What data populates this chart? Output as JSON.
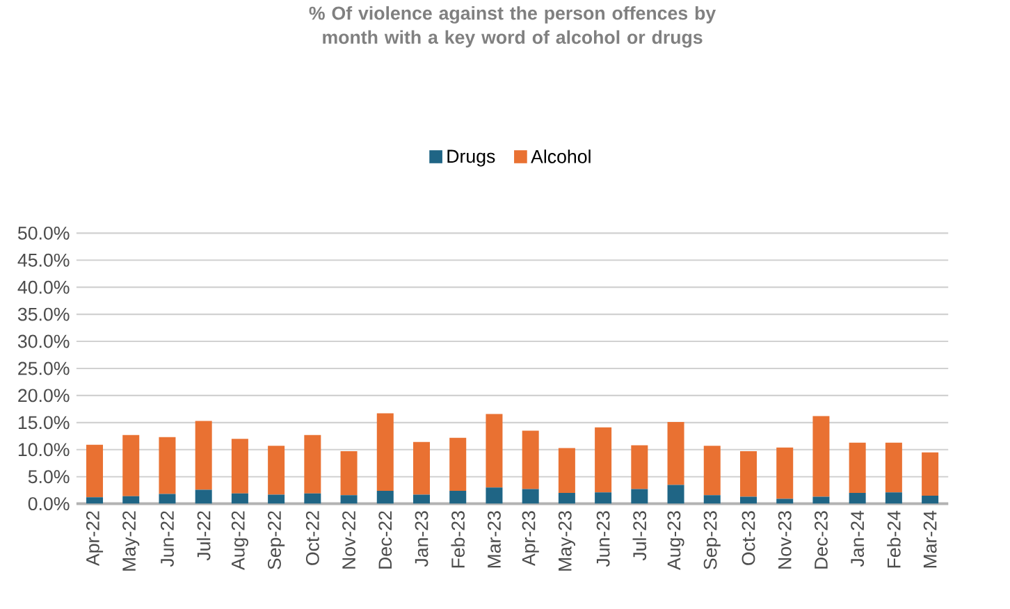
{
  "chart_data": {
    "type": "bar",
    "stacked": true,
    "title": "% Of violence against the person offences by month with a key word of  alcohol or drugs",
    "categories": [
      "Apr-22",
      "May-22",
      "Jun-22",
      "Jul-22",
      "Aug-22",
      "Sep-22",
      "Oct-22",
      "Nov-22",
      "Dec-22",
      "Jan-23",
      "Feb-23",
      "Mar-23",
      "Apr-23",
      "May-23",
      "Jun-23",
      "Jul-23",
      "Aug-23",
      "Sep-23",
      "Oct-23",
      "Nov-23",
      "Dec-23",
      "Jan-24",
      "Feb-24",
      "Mar-24"
    ],
    "series": [
      {
        "name": "Drugs",
        "color": "#1f6585",
        "values": [
          1.2,
          1.4,
          1.8,
          2.6,
          1.9,
          1.7,
          1.9,
          1.6,
          2.4,
          1.7,
          2.4,
          3.0,
          2.7,
          2.0,
          2.1,
          2.7,
          3.5,
          1.6,
          1.3,
          0.9,
          1.3,
          2.0,
          2.1,
          1.5
        ]
      },
      {
        "name": "Alcohol",
        "color": "#e97132",
        "values": [
          9.7,
          11.3,
          10.5,
          12.7,
          10.1,
          9.0,
          10.8,
          8.1,
          14.3,
          9.7,
          9.8,
          13.6,
          10.8,
          8.3,
          12.0,
          8.1,
          11.6,
          9.1,
          8.4,
          9.5,
          14.9,
          9.3,
          9.2,
          8.0
        ]
      }
    ],
    "ylim": [
      0,
      50
    ],
    "yticks": [
      {
        "value": 0,
        "label": "0.0%"
      },
      {
        "value": 5,
        "label": "5.0%"
      },
      {
        "value": 10,
        "label": "10.0%"
      },
      {
        "value": 15,
        "label": "15.0%"
      },
      {
        "value": 20,
        "label": "20.0%"
      },
      {
        "value": 25,
        "label": "25.0%"
      },
      {
        "value": 30,
        "label": "30.0%"
      },
      {
        "value": 35,
        "label": "35.0%"
      },
      {
        "value": 40,
        "label": "40.0%"
      },
      {
        "value": 45,
        "label": "45.0%"
      },
      {
        "value": 50,
        "label": "50.0%"
      }
    ],
    "grid": "y",
    "legend": "top"
  }
}
